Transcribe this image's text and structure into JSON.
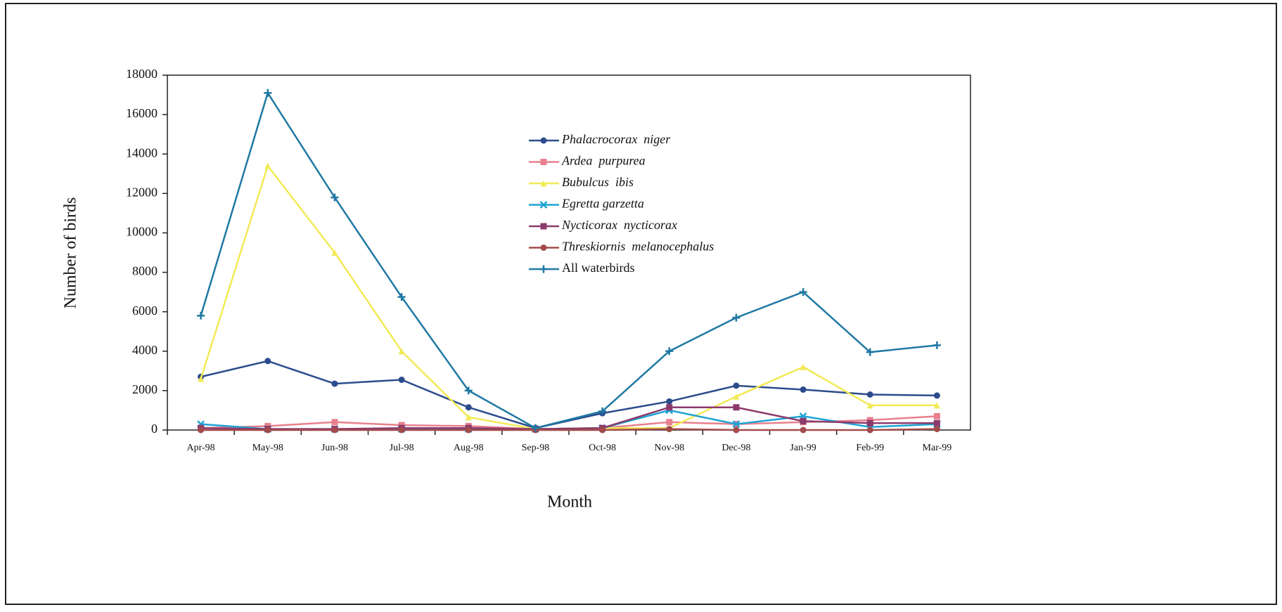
{
  "chart_data": {
    "type": "line",
    "x_label": "Month",
    "y_label": "Number of birds",
    "categories": [
      "Apr-98",
      "May-98",
      "Jun-98",
      "Jul-98",
      "Aug-98",
      "Sep-98",
      "Oct-98",
      "Nov-98",
      "Dec-98",
      "Jan-99",
      "Feb-99",
      "Mar-99"
    ],
    "ylim": [
      0,
      18000
    ],
    "yticks": [
      0,
      2000,
      4000,
      6000,
      8000,
      10000,
      12000,
      14000,
      16000,
      18000
    ],
    "series": [
      {
        "name": "Phalacrocorax  niger",
        "color": "#2b4c8c",
        "marker": "circle",
        "italic": true,
        "values": [
          2700,
          3500,
          2350,
          2550,
          1150,
          100,
          850,
          1450,
          2250,
          2050,
          1800,
          1750
        ]
      },
      {
        "name": "Ardea  purpurea",
        "color": "#e8808e",
        "marker": "square",
        "italic": true,
        "values": [
          100,
          200,
          400,
          250,
          200,
          50,
          100,
          400,
          300,
          400,
          500,
          700
        ]
      },
      {
        "name": "Bubulcus  ibis",
        "color": "#f2ea55",
        "marker": "triangle",
        "italic": true,
        "values": [
          2600,
          13400,
          9000,
          4000,
          650,
          50,
          100,
          100,
          1700,
          3200,
          1250,
          1250
        ]
      },
      {
        "name": "Egretta garzetta",
        "color": "#1ea3d4",
        "marker": "x",
        "italic": true,
        "values": [
          300,
          50,
          50,
          50,
          50,
          50,
          100,
          1000,
          300,
          700,
          150,
          300
        ]
      },
      {
        "name": "Nycticorax  nycticorax",
        "color": "#8c3a6c",
        "marker": "square",
        "italic": true,
        "values": [
          100,
          50,
          50,
          100,
          100,
          50,
          100,
          1150,
          1150,
          450,
          350,
          350
        ]
      },
      {
        "name": "Threskiornis  melanocephalus",
        "color": "#a34a4a",
        "marker": "circle",
        "italic": true,
        "values": [
          0,
          0,
          0,
          0,
          0,
          0,
          0,
          50,
          0,
          0,
          0,
          50
        ]
      },
      {
        "name": "All waterbirds",
        "color": "#1f79a3",
        "marker": "plus",
        "italic": false,
        "values": [
          5800,
          17100,
          11800,
          6750,
          2000,
          100,
          950,
          4000,
          5700,
          7000,
          3950,
          4300
        ]
      }
    ]
  }
}
